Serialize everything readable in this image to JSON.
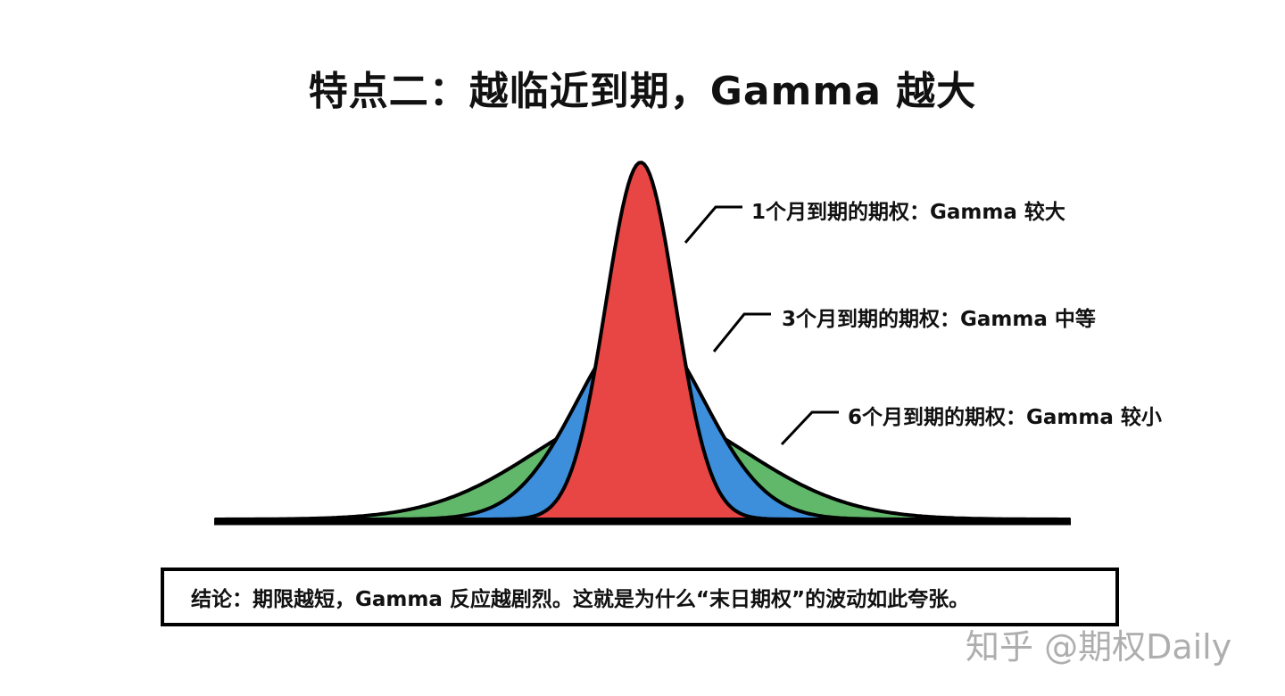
{
  "title": "特点二：越临近到期，Gamma 越大",
  "colors": {
    "short_term": "#E84545",
    "mid_term": "#3D8EDB",
    "long_term": "#62B86A",
    "outline": "#000000"
  },
  "labels": {
    "one_month": "1个月到期的期权：Gamma 较大",
    "three_month": "3个月到期的期权：Gamma 中等",
    "six_month": "6个月到期的期权：Gamma 较小"
  },
  "conclusion": "结论：期限越短，Gamma 反应越剧烈。这就是为什么“末日期权”的波动如此夸张。",
  "watermark": "知乎 @期权Daily",
  "chart_data": {
    "type": "area",
    "title": "特点二：越临近到期，Gamma 越大",
    "xlabel": "",
    "ylabel": "",
    "grid": false,
    "legend_position": "annotations right of curves",
    "series": [
      {
        "name": "1个月到期的期权：Gamma 较大",
        "color": "#E84545",
        "peak_relative": 1.0,
        "width_relative": 0.33
      },
      {
        "name": "3个月到期的期权：Gamma 中等",
        "color": "#3D8EDB",
        "peak_relative": 0.55,
        "width_relative": 0.6
      },
      {
        "name": "6个月到期的期权：Gamma 较小",
        "color": "#62B86A",
        "peak_relative": 0.31,
        "width_relative": 1.0
      }
    ]
  }
}
